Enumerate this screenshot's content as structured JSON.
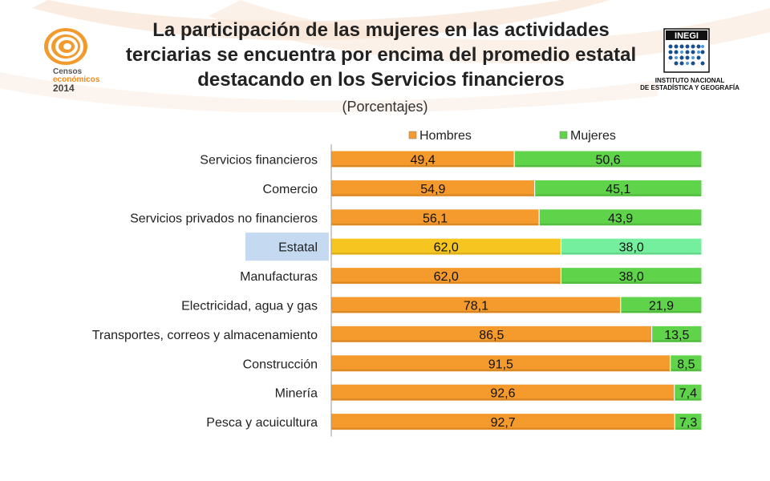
{
  "title": "La participación de las mujeres en las actividades terciarias se encuentra por encima del promedio estatal destacando en los Servicios financieros",
  "title_lines": [
    "La participación de las mujeres en las actividades",
    "terciarias se encuentra por encima del promedio estatal",
    "destacando en los Servicios financieros"
  ],
  "subtitle": "(Porcentajes)",
  "logo_left": {
    "line1": "Censos",
    "line2": "económicos",
    "line3": "2014"
  },
  "logo_right": {
    "name": "INEGI",
    "line1": "INSTITUTO NACIONAL",
    "line2": "DE ESTADÍSTICA Y GEOGRAFÍA"
  },
  "colors": {
    "hombres": "#f59a2c",
    "mujeres": "#5fd34a",
    "estatal_hombres": "#f7c51f",
    "estatal_mujeres": "#73ef9e",
    "highlight": "#c5d9f1"
  },
  "chart_data": {
    "type": "bar",
    "orientation": "horizontal",
    "stacked": true,
    "categories": [
      "Servicios financieros",
      "Comercio",
      "Servicios privados no financieros",
      "Estatal",
      "Manufacturas",
      "Electricidad, agua y gas",
      "Transportes, correos y almacenamiento",
      "Construcción",
      "Minería",
      "Pesca y acuicultura"
    ],
    "series": [
      {
        "name": "Hombres",
        "values": [
          49.4,
          54.9,
          56.1,
          62.0,
          62.0,
          78.1,
          86.5,
          91.5,
          92.6,
          92.7
        ]
      },
      {
        "name": "Mujeres",
        "values": [
          50.6,
          45.1,
          43.9,
          38.0,
          38.0,
          21.9,
          13.5,
          8.5,
          7.4,
          7.3
        ]
      }
    ],
    "labels": [
      [
        "49,4",
        "54,9",
        "56,1",
        "62,0",
        "62,0",
        "78,1",
        "86,5",
        "91,5",
        "92,6",
        "92,7"
      ],
      [
        "50,6",
        "45,1",
        "43,9",
        "38,0",
        "38,0",
        "21,9",
        "13,5",
        "8,5",
        "7,4",
        "7,3"
      ]
    ],
    "highlight_category": "Estatal",
    "xlim": [
      0,
      100
    ],
    "legend_position": "top",
    "grid": false
  }
}
